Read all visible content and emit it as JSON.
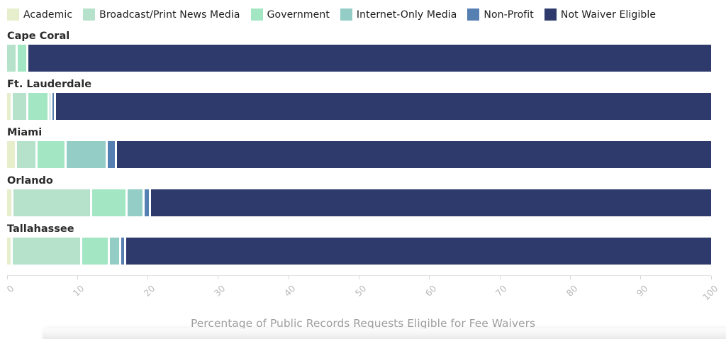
{
  "chart_data": {
    "type": "bar",
    "stacked": true,
    "orientation": "horizontal",
    "title": "",
    "xlabel": "Percentage of Public Records Requests Eligible for Fee Waivers",
    "ylabel": "",
    "categories": [
      "Cape Coral",
      "Ft. Lauderdale",
      "Miami",
      "Orlando",
      "Tallahassee"
    ],
    "series": [
      {
        "name": "Academic",
        "color": "#e7eecb",
        "values": [
          0,
          0.8,
          1.4,
          0.9,
          0.8
        ]
      },
      {
        "name": "Broadcast/Print News Media",
        "color": "#b6e1cb",
        "values": [
          1.5,
          2.2,
          2.9,
          11.2,
          9.9
        ]
      },
      {
        "name": "Government",
        "color": "#a3e6c4",
        "values": [
          1.5,
          3.0,
          4.2,
          5.0,
          3.9
        ]
      },
      {
        "name": "Internet-Only Media",
        "color": "#93cdc6",
        "values": [
          0,
          0.4,
          5.8,
          2.4,
          1.6
        ]
      },
      {
        "name": "Non-Profit",
        "color": "#567fb2",
        "values": [
          0,
          0.6,
          1.3,
          0.9,
          0.7
        ]
      },
      {
        "name": "Not Waiver Eligible",
        "color": "#2e3a6c",
        "values": [
          97.0,
          93.0,
          84.4,
          79.6,
          83.1
        ]
      }
    ],
    "x_axis": {
      "range": [
        0,
        100
      ],
      "ticks": [
        0,
        10,
        20,
        30,
        40,
        50,
        60,
        70,
        80,
        90,
        100
      ]
    },
    "grid": false,
    "legend_position": "top"
  },
  "colors": {
    "bar_gap": "#ffffff",
    "axis_line": "#e3e3e3",
    "tick_label": "#b9b9b9",
    "row_label": "#2b2b2b",
    "axis_title": "#9f9f9f"
  }
}
